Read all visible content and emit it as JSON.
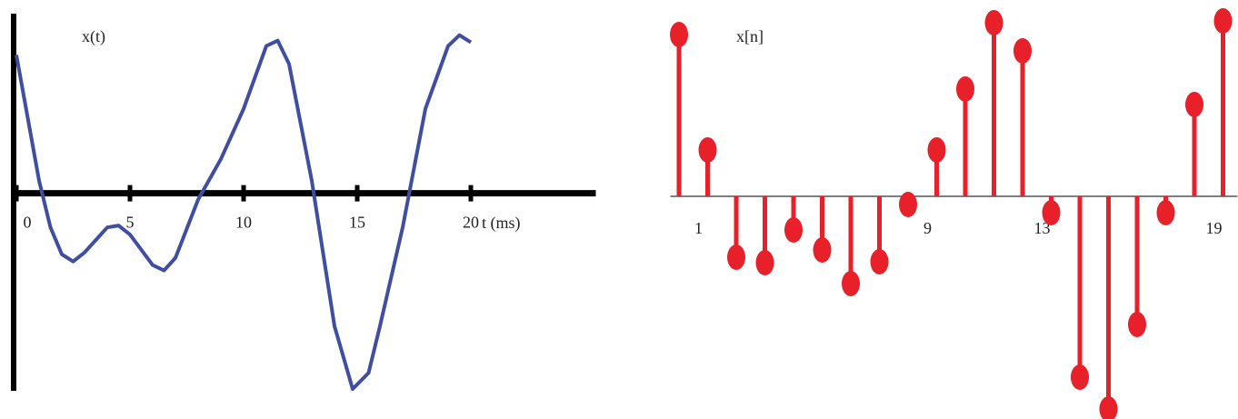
{
  "chart_data": [
    {
      "type": "line",
      "title": "x(t)",
      "xlabel": "t (ms)",
      "x": [
        0,
        1,
        1.5,
        2,
        2.5,
        3,
        4,
        4.5,
        5,
        6,
        6.5,
        7,
        8,
        9,
        10,
        11,
        11.5,
        12,
        13,
        14,
        14.8,
        15.5,
        16,
        17,
        18,
        19,
        19.5,
        20
      ],
      "series": [
        {
          "color": "#3f4ea0",
          "values": [
            7.7,
            0.7,
            -1.9,
            -3.4,
            -3.8,
            -3.3,
            -1.9,
            -1.8,
            -2.3,
            -4.0,
            -4.3,
            -3.6,
            -0.35,
            1.9,
            4.7,
            8.2,
            8.5,
            7.2,
            0.7,
            -7.4,
            -10.9,
            -10.0,
            -7.4,
            -1.9,
            4.7,
            8.2,
            8.8,
            8.4
          ]
        }
      ],
      "xlim": [
        0,
        25.5
      ],
      "ylim": [
        -11,
        10
      ],
      "xticks": [
        0,
        5,
        10,
        15,
        20
      ]
    },
    {
      "type": "stem",
      "title": "x[n]",
      "x": [
        0,
        1,
        2,
        3,
        4,
        5,
        6,
        7,
        8,
        9,
        10,
        11,
        12,
        13,
        14,
        15,
        16,
        17,
        18,
        19
      ],
      "series": [
        {
          "color": "#e8202a",
          "values": [
            8.9,
            2.55,
            -3.35,
            -3.65,
            -1.85,
            -2.95,
            -4.8,
            -3.6,
            -0.45,
            2.55,
            5.9,
            9.55,
            8.0,
            -0.9,
            -9.95,
            -11.7,
            -7.05,
            -0.9,
            5.05,
            9.65
          ]
        }
      ],
      "xlim": [
        -0.3,
        19.5
      ],
      "ylim": [
        -12.2,
        10.3
      ],
      "xticks": [
        1,
        9,
        13,
        19
      ]
    }
  ]
}
